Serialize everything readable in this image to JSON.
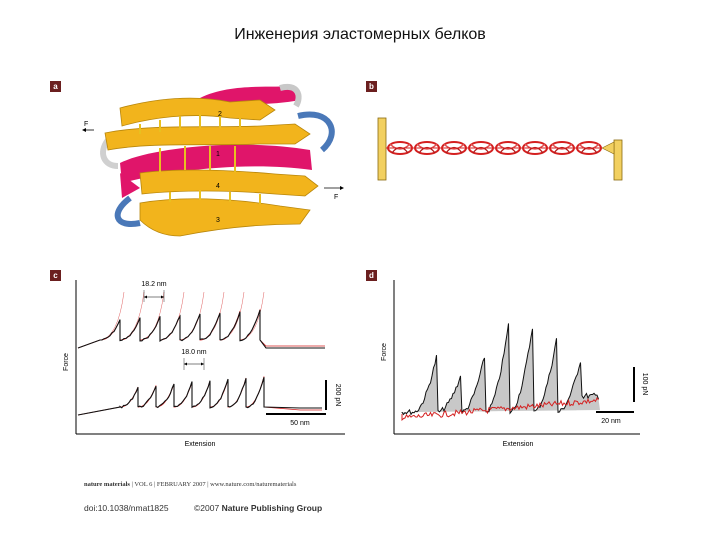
{
  "slide": {
    "title": "Инженерия эластомерных белков"
  },
  "panels": {
    "a": {
      "tag": "a",
      "strand_labels": [
        "2",
        "1",
        "4",
        "3"
      ],
      "force_labels": [
        "F",
        "F"
      ]
    },
    "b": {
      "tag": "b"
    },
    "c": {
      "tag": "c",
      "y_label": "Force",
      "x_label": "Extension",
      "spacing_top": "18.2 nm",
      "spacing_bottom": "18.0 nm",
      "scale_force": "200 pN",
      "scale_ext": "50 nm"
    },
    "d": {
      "tag": "d",
      "y_label": "Force",
      "x_label": "Extension",
      "scale_force": "100 pN",
      "scale_ext": "20 nm"
    }
  },
  "footer": {
    "journal": "nature materials",
    "line": "| VOL 6 | FEBRUARY 2007 | www.nature.com/naturematerials",
    "doi": "doi:10.1038/nmat1825",
    "copyright": "©2007",
    "publisher": "Nature Publishing Group"
  },
  "colors": {
    "accent_red": "#d42020",
    "ribbon_gold": "#f2b41c",
    "helix_magenta": "#e0156a",
    "loop_blue": "#4a78b8",
    "tag_brown": "#6b1f1f"
  }
}
